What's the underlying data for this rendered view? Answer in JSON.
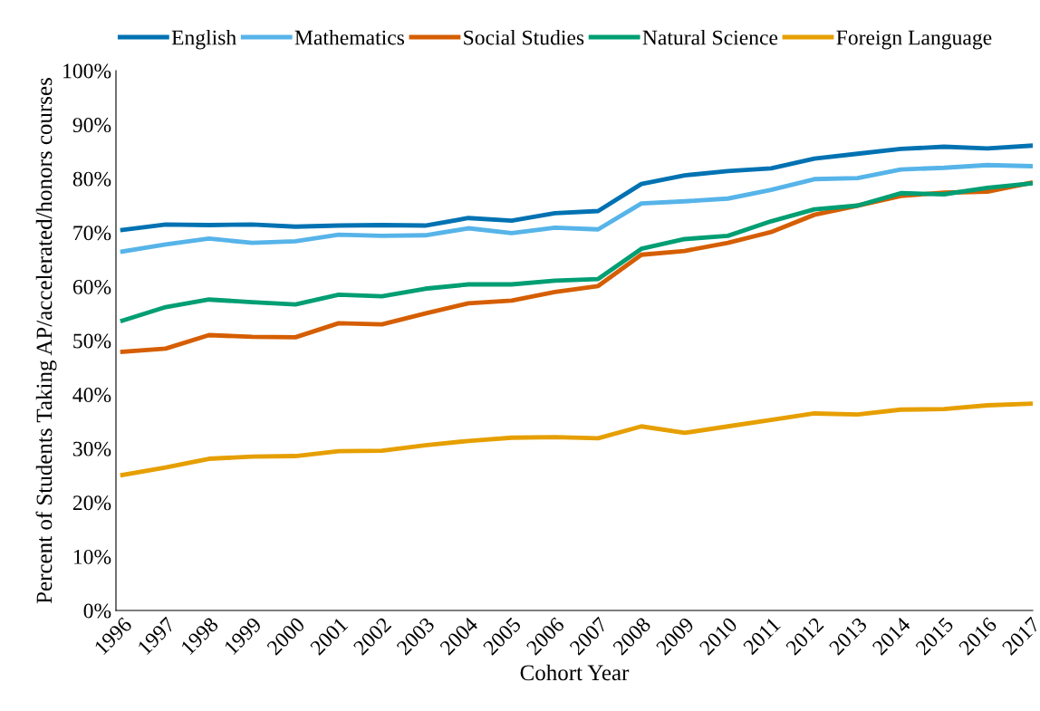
{
  "chart_data": {
    "type": "line",
    "xlabel": "Cohort Year",
    "ylabel": "Percent of Students Taking AP/accelerated/honors courses",
    "categories": [
      "1996",
      "1997",
      "1998",
      "1999",
      "2000",
      "2001",
      "2002",
      "2003",
      "2004",
      "2005",
      "2006",
      "2007",
      "2008",
      "2009",
      "2010",
      "2011",
      "2012",
      "2013",
      "2014",
      "2015",
      "2016",
      "2017"
    ],
    "series": [
      {
        "name": "English",
        "color": "#0072b2",
        "values": [
          70.5,
          71.5,
          71.4,
          71.5,
          71.1,
          71.3,
          71.4,
          71.3,
          72.7,
          72.2,
          73.6,
          74.0,
          79.0,
          80.6,
          81.4,
          81.9,
          83.7,
          84.6,
          85.5,
          85.9,
          85.6,
          86.1
        ]
      },
      {
        "name": "Mathematics",
        "color": "#56b4e9",
        "values": [
          66.5,
          67.8,
          68.9,
          68.1,
          68.4,
          69.6,
          69.4,
          69.5,
          70.8,
          69.9,
          70.9,
          70.6,
          75.4,
          75.8,
          76.3,
          77.9,
          79.9,
          80.1,
          81.7,
          82.0,
          82.5,
          82.3
        ]
      },
      {
        "name": "Social Studies",
        "color": "#d55e00",
        "values": [
          47.9,
          48.5,
          51.0,
          50.7,
          50.6,
          53.2,
          53.0,
          55.0,
          56.9,
          57.4,
          59.0,
          60.1,
          65.9,
          66.6,
          68.1,
          70.1,
          73.3,
          75.0,
          76.8,
          77.4,
          77.6,
          79.2
        ]
      },
      {
        "name": "Natural Science",
        "color": "#009e73",
        "values": [
          53.7,
          56.2,
          57.6,
          57.1,
          56.7,
          58.5,
          58.2,
          59.6,
          60.4,
          60.4,
          61.1,
          61.4,
          67.0,
          68.8,
          69.4,
          72.1,
          74.3,
          75.0,
          77.3,
          77.1,
          78.3,
          79.1
        ]
      },
      {
        "name": "Foreign Language",
        "color": "#e69f00",
        "values": [
          25.1,
          26.5,
          28.1,
          28.5,
          28.6,
          29.5,
          29.6,
          30.6,
          31.4,
          32.0,
          32.1,
          31.9,
          34.1,
          32.9,
          34.1,
          35.3,
          36.5,
          36.3,
          37.2,
          37.3,
          38.0,
          38.3
        ]
      }
    ],
    "ylim": [
      0,
      100
    ],
    "yticks": [
      {
        "value": 0,
        "label": "0%"
      },
      {
        "value": 10,
        "label": "10%"
      },
      {
        "value": 20,
        "label": "20%"
      },
      {
        "value": 30,
        "label": "30%"
      },
      {
        "value": 40,
        "label": "40%"
      },
      {
        "value": 50,
        "label": "50%"
      },
      {
        "value": 60,
        "label": "60%"
      },
      {
        "value": 70,
        "label": "70%"
      },
      {
        "value": 80,
        "label": "80%"
      },
      {
        "value": 90,
        "label": "90%"
      },
      {
        "value": 100,
        "label": "100%"
      }
    ],
    "grid": false,
    "legend": "top",
    "marker": "none",
    "line_style": "solid"
  }
}
